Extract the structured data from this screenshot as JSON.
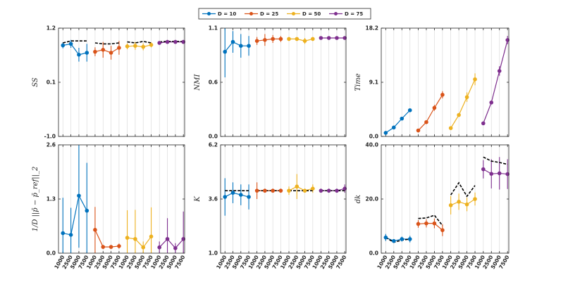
{
  "legend": {
    "entries": [
      {
        "label": "D = 10",
        "color": "#0072BD"
      },
      {
        "label": "D = 25",
        "color": "#D95319"
      },
      {
        "label": "D = 50",
        "color": "#EDB120"
      },
      {
        "label": "D = 75",
        "color": "#7E2F8E"
      }
    ]
  },
  "chart_data": [
    {
      "type": "line",
      "ylabel": "SS",
      "yticks": [
        "1.2",
        "0.1",
        "-1.0"
      ],
      "ylim": [
        -1.0,
        1.2
      ],
      "groups": [
        {
          "name": "D = 10",
          "mean": [
            0.85,
            0.88,
            0.66,
            0.7
          ],
          "err": [
            0.06,
            0.08,
            0.14,
            0.18
          ],
          "ref": [
            0.9,
            0.94,
            0.94,
            0.94
          ]
        },
        {
          "name": "D = 25",
          "mean": [
            0.72,
            0.76,
            0.7,
            0.8
          ],
          "err": [
            0.09,
            0.16,
            0.14,
            0.14
          ],
          "ref": [
            0.9,
            0.88,
            0.88,
            0.9
          ]
        },
        {
          "name": "D = 50",
          "mean": [
            0.83,
            0.84,
            0.82,
            0.86
          ],
          "err": [
            0.06,
            0.08,
            0.07,
            0.05
          ],
          "ref": [
            0.92,
            0.9,
            0.93,
            0.9
          ]
        },
        {
          "name": "D = 75",
          "mean": [
            0.9,
            0.92,
            0.92,
            0.92
          ],
          "err": [
            0.04,
            0.04,
            0.04,
            0.04
          ],
          "ref": [
            0.92,
            0.93,
            0.93,
            0.93
          ]
        }
      ]
    },
    {
      "type": "line",
      "ylabel": "NMI",
      "yticks": [
        "1.1",
        "0.6",
        "0.0"
      ],
      "ylim": [
        0.0,
        1.1
      ],
      "groups": [
        {
          "name": "D = 10",
          "mean": [
            0.86,
            0.96,
            0.92,
            0.92
          ],
          "err": [
            0.26,
            0.11,
            0.12,
            0.1
          ],
          "ref": null
        },
        {
          "name": "D = 25",
          "mean": [
            0.97,
            0.98,
            0.99,
            0.99
          ],
          "err": [
            0.04,
            0.06,
            0.04,
            0.03
          ],
          "ref": null
        },
        {
          "name": "D = 50",
          "mean": [
            0.99,
            0.99,
            0.97,
            0.99
          ],
          "err": [
            0.02,
            0.02,
            0.03,
            0.02
          ],
          "ref": null
        },
        {
          "name": "D = 75",
          "mean": [
            1.0,
            1.0,
            1.0,
            1.0
          ],
          "err": [
            0.01,
            0.01,
            0.01,
            0.01
          ],
          "ref": null
        }
      ]
    },
    {
      "type": "line",
      "ylabel": "Time",
      "yticks": [
        "18.2",
        "9.1",
        "0.0"
      ],
      "ylim": [
        0.0,
        18.2
      ],
      "groups": [
        {
          "name": "D = 10",
          "mean": [
            0.6,
            1.5,
            3.0,
            4.4
          ],
          "err": [
            0.1,
            0.2,
            0.2,
            0.2
          ],
          "ref": null
        },
        {
          "name": "D = 25",
          "mean": [
            1.0,
            2.4,
            4.8,
            7.0
          ],
          "err": [
            0.1,
            0.2,
            0.5,
            0.6
          ],
          "ref": null
        },
        {
          "name": "D = 50",
          "mean": [
            1.4,
            3.6,
            6.6,
            9.6
          ],
          "err": [
            0.1,
            0.3,
            0.8,
            1.0
          ],
          "ref": null
        },
        {
          "name": "D = 75",
          "mean": [
            2.2,
            5.7,
            11.0,
            16.2
          ],
          "err": [
            0.1,
            0.3,
            0.8,
            0.7
          ],
          "ref": null
        }
      ]
    },
    {
      "type": "line",
      "ylabel": "1/D ||p̄ − p̄_ref||_2",
      "yticks": [
        "2.6",
        "1.3",
        "0.0"
      ],
      "ylim": [
        0.0,
        2.6
      ],
      "groups": [
        {
          "name": "D = 10",
          "mean": [
            0.48,
            0.44,
            1.38,
            1.02
          ],
          "err": [
            0.85,
            0.65,
            1.25,
            1.15
          ],
          "ref": null
        },
        {
          "name": "D = 25",
          "mean": [
            0.56,
            0.15,
            0.15,
            0.17
          ],
          "err": [
            0.55,
            0.05,
            0.05,
            0.06
          ],
          "ref": null
        },
        {
          "name": "D = 50",
          "mean": [
            0.37,
            0.34,
            0.14,
            0.4
          ],
          "err": [
            0.66,
            0.7,
            0.14,
            0.7
          ],
          "ref": null
        },
        {
          "name": "D = 75",
          "mean": [
            0.14,
            0.34,
            0.12,
            0.34
          ],
          "err": [
            0.14,
            0.5,
            0.12,
            0.66
          ],
          "ref": null
        }
      ]
    },
    {
      "type": "line",
      "ylabel": "K",
      "yticks": [
        "6.2",
        "3.6",
        "1.0"
      ],
      "ylim": [
        1.0,
        6.2
      ],
      "groups": [
        {
          "name": "D = 10",
          "mean": [
            3.7,
            3.9,
            3.8,
            3.7
          ],
          "err": [
            0.9,
            0.5,
            0.5,
            0.6
          ],
          "ref": [
            4.0,
            4.0,
            4.0,
            4.0
          ]
        },
        {
          "name": "D = 25",
          "mean": [
            4.0,
            4.0,
            4.0,
            4.0
          ],
          "err": [
            0.4,
            0.1,
            0.1,
            0.1
          ],
          "ref": [
            4.0,
            4.0,
            4.0,
            4.0
          ]
        },
        {
          "name": "D = 50",
          "mean": [
            4.0,
            4.2,
            4.0,
            4.1
          ],
          "err": [
            0.2,
            0.6,
            0.1,
            0.2
          ],
          "ref": [
            4.0,
            4.0,
            4.0,
            4.0
          ]
        },
        {
          "name": "D = 75",
          "mean": [
            4.0,
            4.0,
            4.0,
            4.1
          ],
          "err": [
            0.1,
            0.1,
            0.1,
            0.2
          ],
          "ref": [
            4.0,
            4.0,
            4.0,
            4.0
          ]
        }
      ]
    },
    {
      "type": "line",
      "ylabel": "dk",
      "yticks": [
        "40.0",
        "20.0",
        "0.0"
      ],
      "ylim": [
        0.0,
        40.0
      ],
      "groups": [
        {
          "name": "D = 10",
          "mean": [
            5.8,
            4.5,
            5.2,
            5.2
          ],
          "err": [
            1.3,
            0.6,
            0.9,
            1.2
          ],
          "ref": [
            5.8,
            4.0,
            4.8,
            5.2
          ]
        },
        {
          "name": "D = 25",
          "mean": [
            10.8,
            11.0,
            11.0,
            8.5
          ],
          "err": [
            1.4,
            1.5,
            1.8,
            2.2
          ],
          "ref": [
            12.8,
            13.0,
            14.0,
            10.2
          ]
        },
        {
          "name": "D = 50",
          "mean": [
            17.7,
            19.0,
            18.0,
            20.0
          ],
          "err": [
            3.4,
            3.0,
            2.5,
            2.4
          ],
          "ref": [
            21.5,
            26.0,
            21.0,
            25.0
          ]
        },
        {
          "name": "D = 75",
          "mean": [
            31.0,
            29.3,
            29.5,
            29.2
          ],
          "err": [
            3.4,
            5.4,
            6.0,
            5.5
          ],
          "ref": [
            35.5,
            34.0,
            33.5,
            32.8
          ]
        }
      ]
    }
  ],
  "xticks": [
    "1000",
    "2500",
    "5000",
    "7500"
  ]
}
